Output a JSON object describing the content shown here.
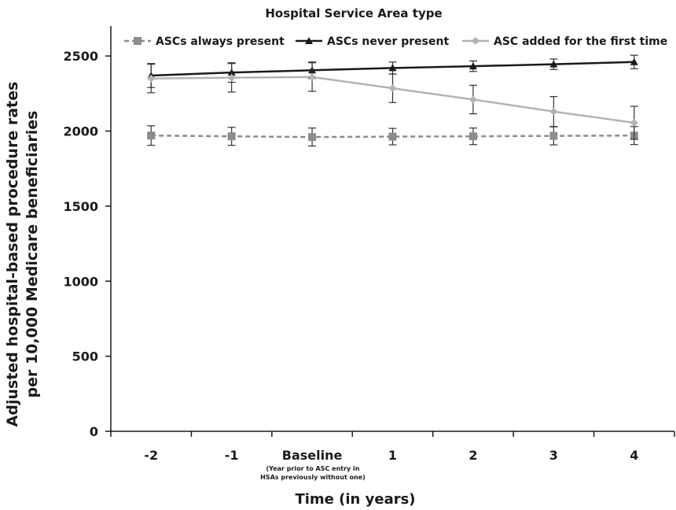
{
  "chart_data": {
    "type": "line",
    "title": "Hospital Service Area type",
    "xlabel": "Time (in years)",
    "ylabel_lines": [
      "Adjusted hospital-based procedure rates",
      "per 10,000 Medicare beneficiaries"
    ],
    "categories": [
      "-2",
      "-1",
      "Baseline",
      "1",
      "2",
      "3",
      "4"
    ],
    "category_sublabel_lines": [
      "(Year prior to ASC entry in",
      "HSAs previously without one)"
    ],
    "ylim": [
      0,
      2700
    ],
    "yticks": [
      0,
      500,
      1000,
      1500,
      2000,
      2500
    ],
    "grid": false,
    "legend_position": "top",
    "series": [
      {
        "name": "ASCs always present",
        "values": [
          1970,
          1965,
          1960,
          1963,
          1965,
          1968,
          1970
        ],
        "err": [
          65,
          60,
          60,
          55,
          55,
          60,
          60
        ],
        "color": "#8c8c8c",
        "dash": true,
        "marker": "square"
      },
      {
        "name": "ASCs never present",
        "values": [
          2370,
          2390,
          2405,
          2420,
          2432,
          2445,
          2460
        ],
        "err": [
          80,
          65,
          55,
          40,
          35,
          35,
          45
        ],
        "color": "#1a1a1a",
        "dash": false,
        "marker": "triangle"
      },
      {
        "name": "ASC added for the first time",
        "values": [
          2350,
          2355,
          2360,
          2285,
          2210,
          2130,
          2055
        ],
        "err": [
          95,
          95,
          95,
          95,
          95,
          100,
          110
        ],
        "color": "#b3b3b3",
        "dash": false,
        "marker": "diamond"
      }
    ]
  }
}
